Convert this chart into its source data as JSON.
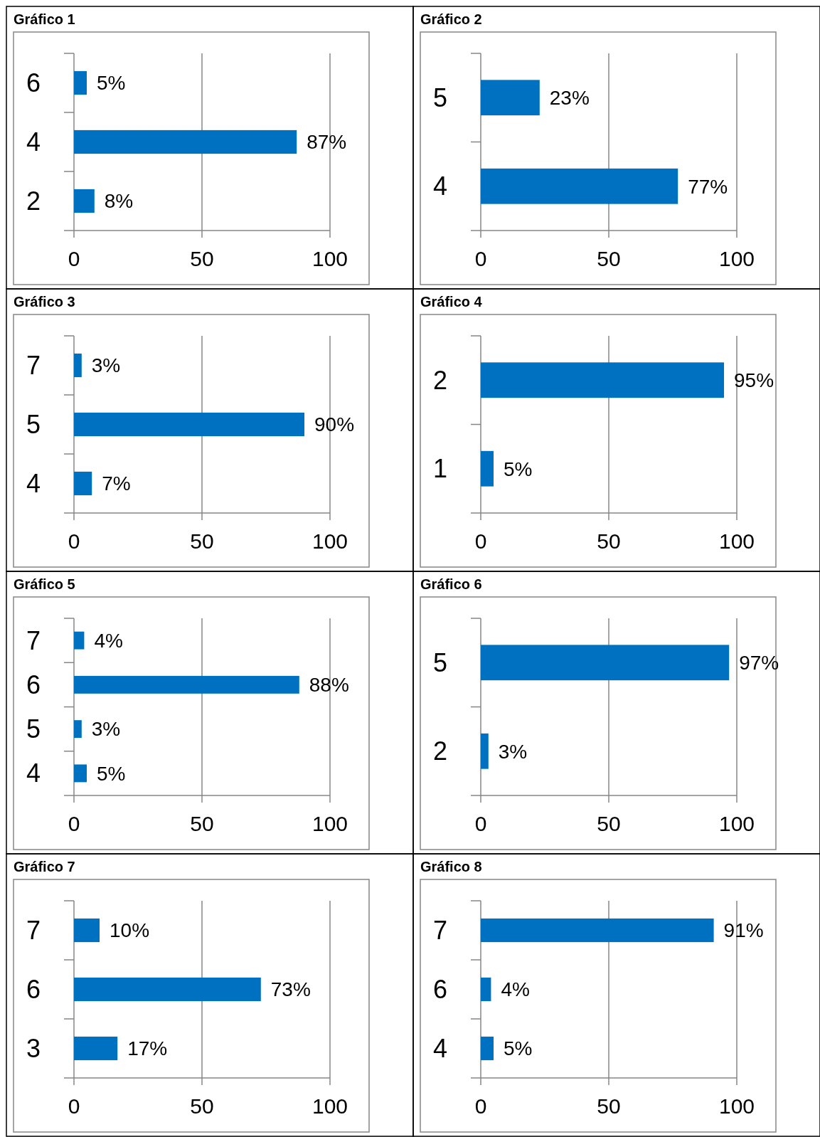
{
  "chart_data": [
    {
      "type": "bar",
      "orientation": "horizontal",
      "title": "Gráfico 1",
      "categories": [
        "6",
        "4",
        "2"
      ],
      "values": [
        5,
        87,
        8
      ],
      "value_labels": [
        "5%",
        "87%",
        "8%"
      ],
      "color": "#0070c0",
      "xlim": [
        0,
        100
      ],
      "xticks": [
        0,
        50,
        100
      ],
      "grid": "x"
    },
    {
      "type": "bar",
      "orientation": "horizontal",
      "title": "Gráfico 2",
      "categories": [
        "5",
        "4"
      ],
      "values": [
        23,
        77
      ],
      "value_labels": [
        "23%",
        "77%"
      ],
      "color": "#0070c0",
      "xlim": [
        0,
        100
      ],
      "xticks": [
        0,
        50,
        100
      ],
      "grid": "x"
    },
    {
      "type": "bar",
      "orientation": "horizontal",
      "title": "Gráfico 3",
      "categories": [
        "7",
        "5",
        "4"
      ],
      "values": [
        3,
        90,
        7
      ],
      "value_labels": [
        "3%",
        "90%",
        "7%"
      ],
      "color": "#0070c0",
      "xlim": [
        0,
        100
      ],
      "xticks": [
        0,
        50,
        100
      ],
      "grid": "x"
    },
    {
      "type": "bar",
      "orientation": "horizontal",
      "title": "Gráfico 4",
      "categories": [
        "2",
        "1"
      ],
      "values": [
        95,
        5
      ],
      "value_labels": [
        "95%",
        "5%"
      ],
      "color": "#0070c0",
      "xlim": [
        0,
        100
      ],
      "xticks": [
        0,
        50,
        100
      ],
      "grid": "x"
    },
    {
      "type": "bar",
      "orientation": "horizontal",
      "title": "Gráfico 5",
      "categories": [
        "7",
        "6",
        "5",
        "4"
      ],
      "values": [
        4,
        88,
        3,
        5
      ],
      "value_labels": [
        "4%",
        "88%",
        "3%",
        "5%"
      ],
      "color": "#0070c0",
      "xlim": [
        0,
        100
      ],
      "xticks": [
        0,
        50,
        100
      ],
      "grid": "x"
    },
    {
      "type": "bar",
      "orientation": "horizontal",
      "title": "Gráfico 6",
      "categories": [
        "5",
        "2"
      ],
      "values": [
        97,
        3
      ],
      "value_labels": [
        "97%",
        "3%"
      ],
      "color": "#0070c0",
      "xlim": [
        0,
        100
      ],
      "xticks": [
        0,
        50,
        100
      ],
      "grid": "x"
    },
    {
      "type": "bar",
      "orientation": "horizontal",
      "title": "Gráfico 7",
      "categories": [
        "7",
        "6",
        "3"
      ],
      "values": [
        10,
        73,
        17
      ],
      "value_labels": [
        "10%",
        "73%",
        "17%"
      ],
      "color": "#0070c0",
      "xlim": [
        0,
        100
      ],
      "xticks": [
        0,
        50,
        100
      ],
      "grid": "x"
    },
    {
      "type": "bar",
      "orientation": "horizontal",
      "title": "Gráfico 8",
      "categories": [
        "7",
        "6",
        "4"
      ],
      "values": [
        91,
        4,
        5
      ],
      "value_labels": [
        "91%",
        "4%",
        "5%"
      ],
      "color": "#0070c0",
      "xlim": [
        0,
        100
      ],
      "xticks": [
        0,
        50,
        100
      ],
      "grid": "x"
    }
  ]
}
